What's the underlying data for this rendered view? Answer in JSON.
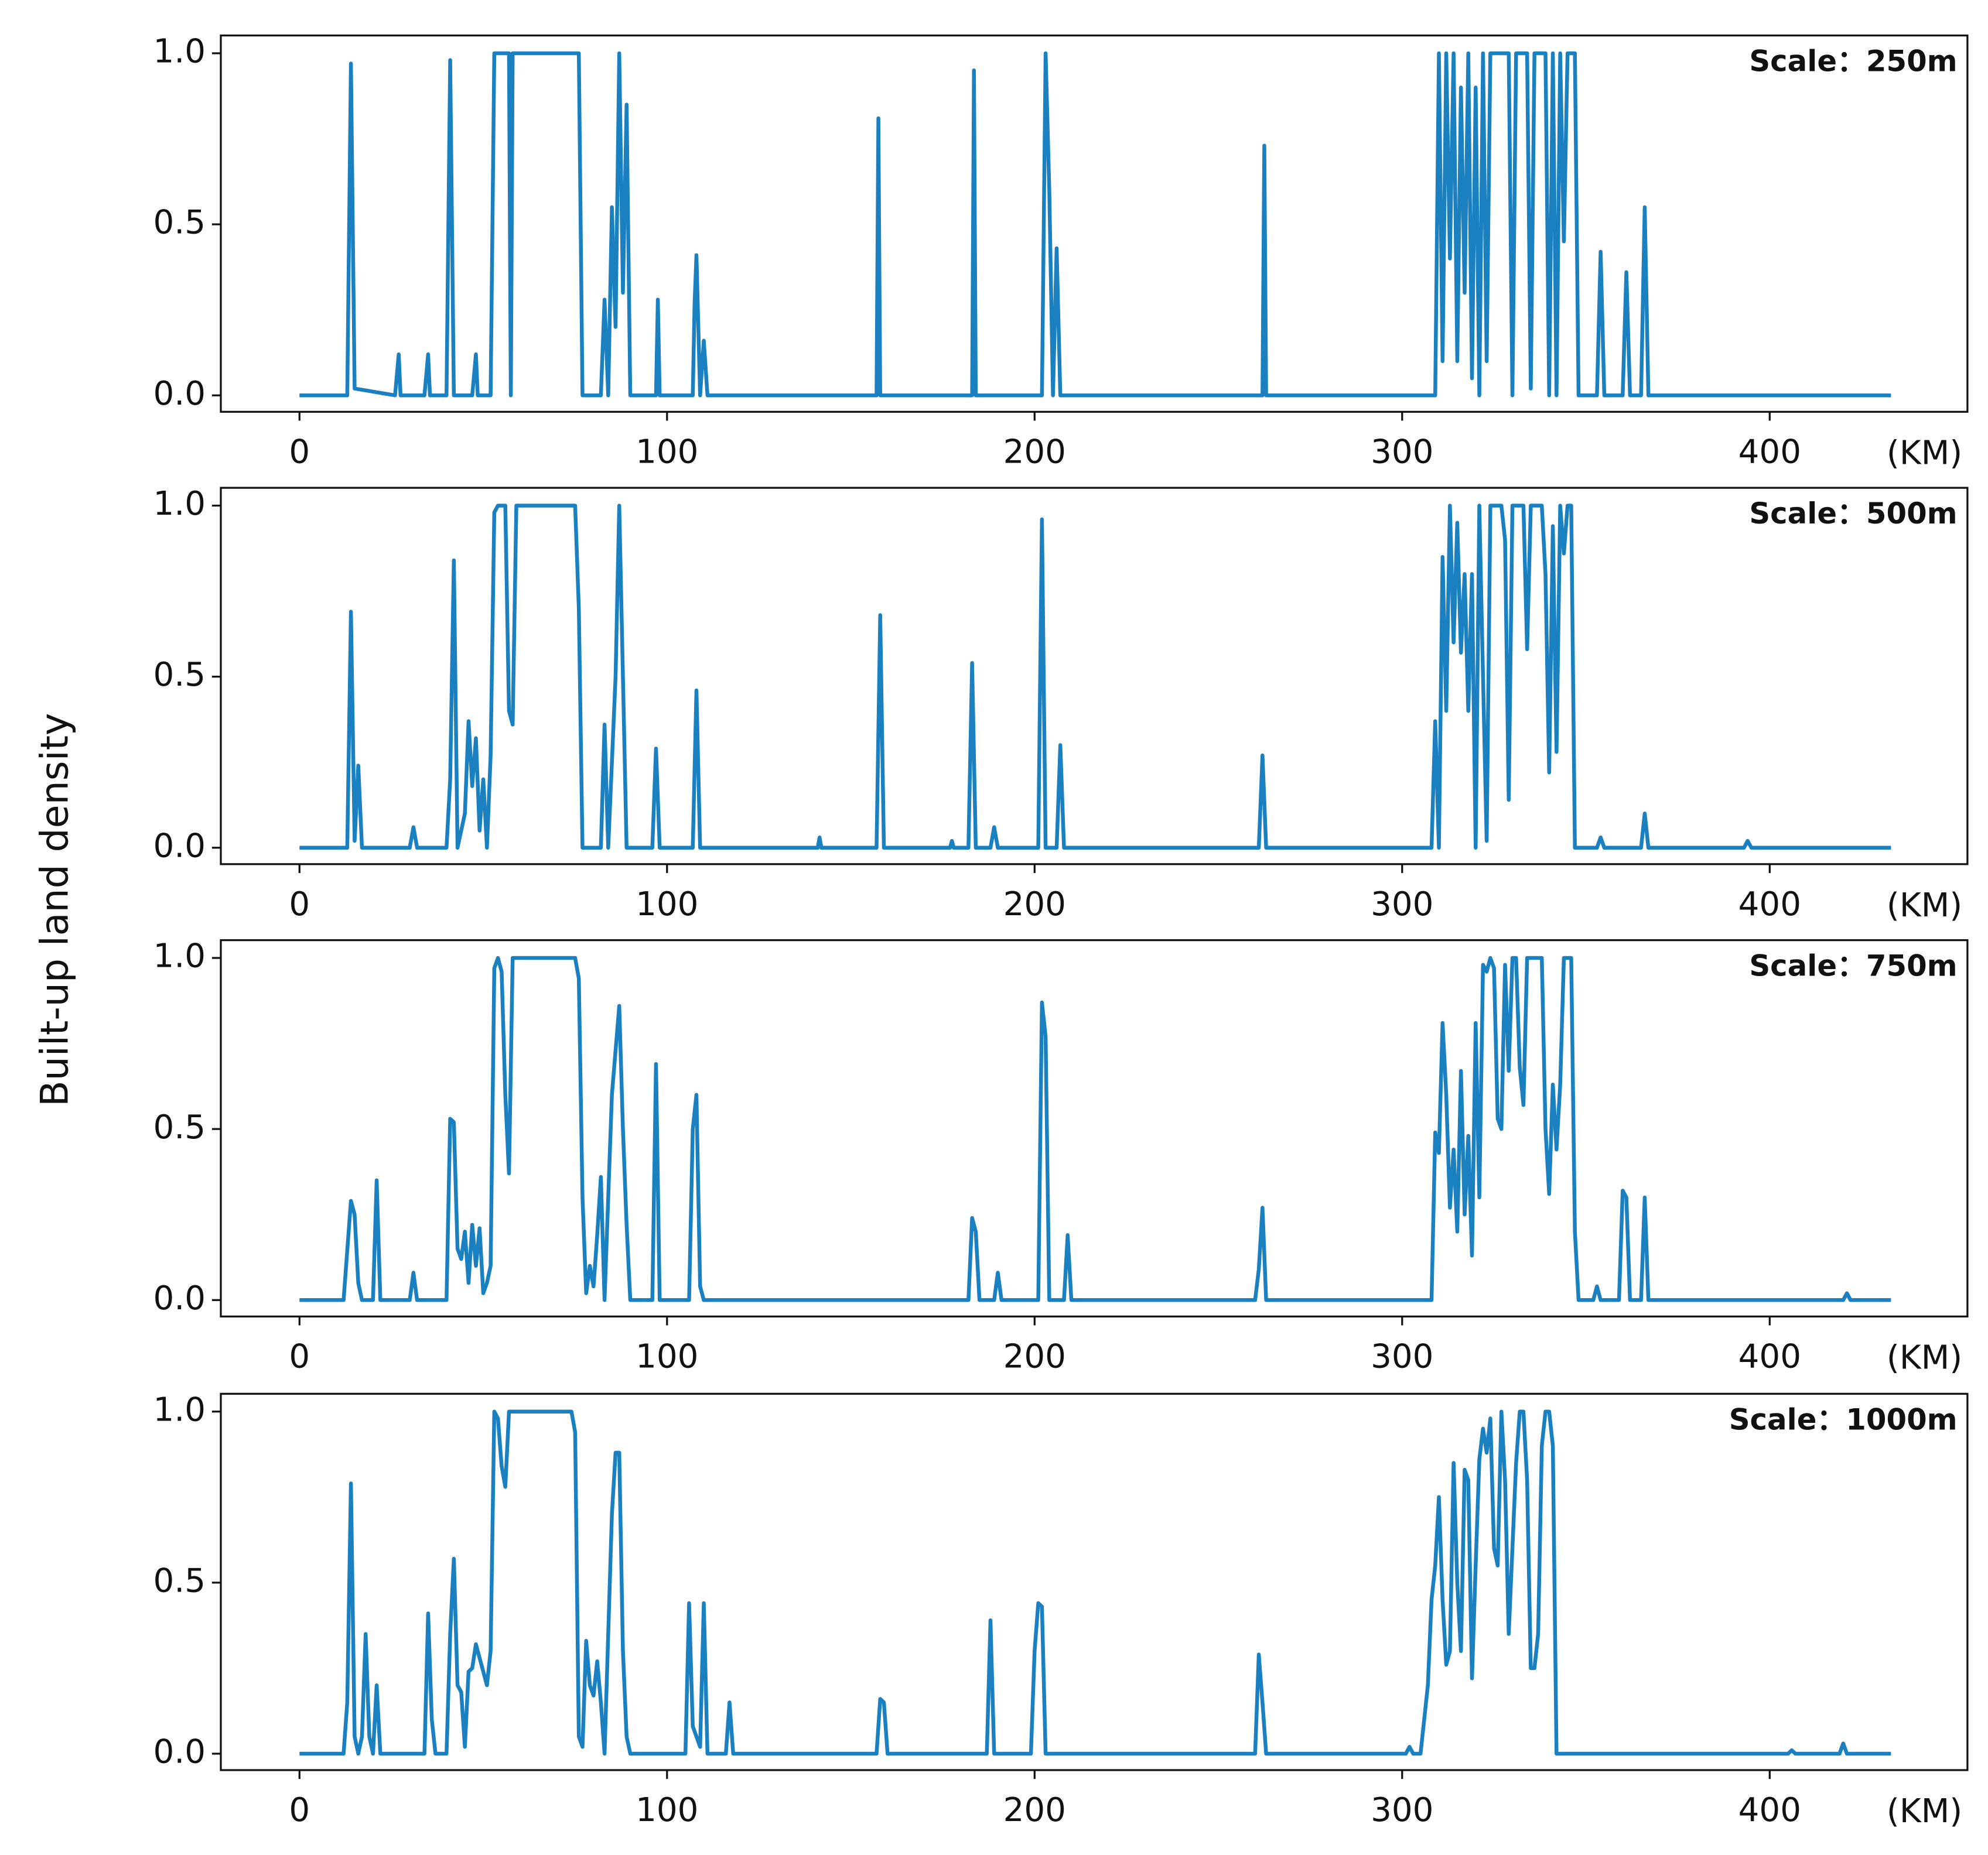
{
  "figure": {
    "ylabel": "Built-up land density"
  },
  "chart_data": [
    {
      "type": "line",
      "annotation": "Scale：250m",
      "xlabel": "(KM)",
      "color": "#1a80c0",
      "xlim": [
        -21.4,
        453.8
      ],
      "ylim": [
        -0.048,
        1.052
      ],
      "xticks": [
        0,
        100,
        200,
        300,
        400
      ],
      "yticks": [
        {
          "value": 0,
          "label": "0.0"
        },
        0.5,
        {
          "value": 1,
          "label": "1.0"
        }
      ],
      "x": [
        0,
        13,
        14,
        15,
        26,
        27,
        27.5,
        34,
        35,
        35.5,
        40,
        41,
        42,
        47,
        48,
        48.5,
        52,
        53,
        57,
        57.5,
        58,
        76,
        77,
        82,
        83,
        84,
        85,
        86,
        87,
        88,
        89,
        90,
        97,
        97.5,
        98,
        107,
        107.5,
        108,
        109,
        110,
        111,
        157,
        157.5,
        158,
        183,
        183.5,
        184,
        202,
        203,
        204,
        205,
        206,
        207,
        262,
        262.5,
        263,
        309,
        310,
        311,
        312,
        313,
        314,
        315,
        316,
        317,
        318,
        319,
        320,
        321,
        322,
        323,
        324,
        329,
        330,
        331,
        334,
        335,
        336,
        339,
        340,
        341,
        342,
        343,
        344,
        345,
        347,
        348,
        353,
        354,
        355,
        360,
        361,
        362,
        365,
        366,
        367,
        433
      ],
      "values": [
        0,
        0,
        0.97,
        0.02,
        0,
        0.12,
        0,
        0,
        0.12,
        0,
        0,
        0.98,
        0,
        0,
        0.12,
        0,
        0,
        1,
        1,
        0,
        1,
        1,
        0,
        0,
        0.28,
        0,
        0.55,
        0.2,
        1,
        0.3,
        0.85,
        0,
        0,
        0.28,
        0,
        0,
        0.27,
        0.41,
        0,
        0.16,
        0,
        0,
        0.81,
        0,
        0,
        0.95,
        0,
        0,
        1,
        0.6,
        0,
        0.43,
        0,
        0,
        0.73,
        0,
        0,
        1,
        0.1,
        1,
        0.4,
        1,
        0.1,
        0.9,
        0.3,
        1,
        0.05,
        0.9,
        0,
        1,
        0.1,
        1,
        1,
        0,
        1,
        1,
        0.02,
        1,
        1,
        0,
        1,
        0,
        1,
        0.45,
        1,
        1,
        0,
        0,
        0.42,
        0,
        0,
        0.36,
        0,
        0,
        0.55,
        0,
        0
      ]
    },
    {
      "type": "line",
      "annotation": "Scale：500m",
      "xlabel": "(KM)",
      "color": "#1a80c0",
      "xlim": [
        -21.4,
        453.8
      ],
      "ylim": [
        -0.048,
        1.052
      ],
      "xticks": [
        0,
        100,
        200,
        300,
        400
      ],
      "yticks": [
        {
          "value": 0,
          "label": "0.0"
        },
        0.5,
        {
          "value": 1,
          "label": "1.0"
        }
      ],
      "x": [
        0,
        13,
        14,
        15,
        16,
        17,
        30,
        31,
        32,
        40,
        41,
        42,
        43,
        45,
        46,
        47,
        48,
        49,
        50,
        51,
        52,
        53,
        54,
        56,
        57,
        58,
        59,
        75,
        76,
        77,
        82,
        83,
        84,
        86,
        87,
        88,
        89,
        96,
        97,
        98,
        107,
        108,
        109,
        141,
        141.5,
        142,
        157,
        158,
        159,
        177,
        177.5,
        178,
        182,
        183,
        184,
        188,
        189,
        190,
        201,
        202,
        203,
        206,
        207,
        208,
        261,
        262,
        263,
        308,
        309,
        310,
        311,
        312,
        313,
        314,
        315,
        316,
        317,
        318,
        319,
        320,
        321,
        322,
        323,
        324,
        327,
        328,
        329,
        330,
        333,
        334,
        335,
        338,
        339,
        340,
        341,
        342,
        343,
        344,
        345,
        346,
        347,
        353,
        354,
        355,
        365,
        366,
        367,
        393,
        394,
        395,
        433
      ],
      "values": [
        0,
        0,
        0.69,
        0.02,
        0.24,
        0,
        0,
        0.06,
        0,
        0,
        0.2,
        0.84,
        0,
        0.1,
        0.37,
        0.18,
        0.32,
        0.05,
        0.2,
        0,
        0.27,
        0.98,
        1,
        1,
        0.4,
        0.36,
        1,
        1,
        0.7,
        0,
        0,
        0.36,
        0,
        0.5,
        1,
        0.5,
        0,
        0,
        0.29,
        0,
        0,
        0.46,
        0,
        0,
        0.03,
        0,
        0,
        0.68,
        0,
        0,
        0.02,
        0,
        0,
        0.54,
        0,
        0,
        0.06,
        0,
        0,
        0.96,
        0,
        0,
        0.3,
        0,
        0,
        0.27,
        0,
        0,
        0.37,
        0,
        0.85,
        0.4,
        1,
        0.6,
        0.95,
        0.57,
        0.8,
        0.4,
        0.8,
        0,
        1,
        0.5,
        0.02,
        1,
        1,
        0.9,
        0.14,
        1,
        1,
        0.58,
        1,
        1,
        0.8,
        0.22,
        0.94,
        0.28,
        1,
        0.86,
        1,
        1,
        0,
        0,
        0.03,
        0,
        0,
        0.1,
        0,
        0,
        0.02,
        0,
        0
      ]
    },
    {
      "type": "line",
      "annotation": "Scale：750m",
      "xlabel": "(KM)",
      "color": "#1a80c0",
      "xlim": [
        -21.4,
        453.8
      ],
      "ylim": [
        -0.048,
        1.052
      ],
      "xticks": [
        0,
        100,
        200,
        300,
        400
      ],
      "yticks": [
        {
          "value": 0,
          "label": "0.0"
        },
        0.5,
        {
          "value": 1,
          "label": "1.0"
        }
      ],
      "x": [
        0,
        12,
        14,
        15,
        16,
        17,
        20,
        21,
        22,
        30,
        31,
        32,
        40,
        41,
        42,
        43,
        44,
        45,
        46,
        47,
        48,
        49,
        50,
        51,
        52,
        53,
        54,
        55,
        56,
        57,
        58,
        75,
        76,
        77,
        78,
        79,
        80,
        81,
        82,
        83,
        85,
        87,
        88,
        89,
        90,
        96,
        97,
        98,
        106,
        107,
        108,
        109,
        110,
        182,
        183,
        184,
        185,
        189,
        190,
        191,
        201,
        202,
        203,
        204,
        208,
        209,
        210,
        260,
        261,
        262,
        263,
        308,
        309,
        310,
        311,
        312,
        313,
        314,
        315,
        316,
        317,
        318,
        319,
        320,
        321,
        322,
        323,
        324,
        325,
        326,
        327,
        328,
        329,
        330,
        331,
        332,
        333,
        334,
        338,
        339,
        340,
        341,
        342,
        343,
        344,
        346,
        347,
        348,
        352,
        353,
        354,
        359,
        360,
        361,
        362,
        365,
        366,
        367,
        420,
        421,
        422,
        433
      ],
      "values": [
        0,
        0,
        0.29,
        0.25,
        0.05,
        0,
        0,
        0.35,
        0,
        0,
        0.08,
        0,
        0,
        0.53,
        0.52,
        0.15,
        0.12,
        0.2,
        0.05,
        0.22,
        0.1,
        0.21,
        0.02,
        0.05,
        0.1,
        0.97,
        1,
        0.96,
        0.6,
        0.37,
        1,
        1,
        0.94,
        0.3,
        0.02,
        0.1,
        0.04,
        0.19,
        0.36,
        0,
        0.6,
        0.86,
        0.5,
        0.22,
        0,
        0,
        0.69,
        0,
        0,
        0.5,
        0.6,
        0.04,
        0,
        0,
        0.24,
        0.2,
        0,
        0,
        0.08,
        0,
        0,
        0.87,
        0.77,
        0,
        0,
        0.19,
        0,
        0,
        0.09,
        0.27,
        0,
        0,
        0.49,
        0.43,
        0.81,
        0.6,
        0.27,
        0.44,
        0.2,
        0.67,
        0.25,
        0.48,
        0.13,
        0.81,
        0.3,
        0.98,
        0.96,
        1,
        0.97,
        0.53,
        0.5,
        0.98,
        0.67,
        1,
        1,
        0.68,
        0.57,
        1,
        1,
        0.5,
        0.31,
        0.63,
        0.44,
        0.63,
        1,
        1,
        0.2,
        0,
        0,
        0.04,
        0,
        0,
        0.32,
        0.3,
        0,
        0,
        0.3,
        0,
        0,
        0.02,
        0,
        0
      ]
    },
    {
      "type": "line",
      "annotation": "Scale：1000m",
      "xlabel": "(KM)",
      "color": "#1a80c0",
      "xlim": [
        -21.4,
        453.8
      ],
      "ylim": [
        -0.048,
        1.052
      ],
      "xticks": [
        0,
        100,
        200,
        300,
        400
      ],
      "yticks": [
        {
          "value": 0,
          "label": "0.0"
        },
        0.5,
        {
          "value": 1,
          "label": "1.0"
        }
      ],
      "x": [
        0,
        12,
        13,
        14,
        15,
        16,
        17,
        18,
        19,
        20,
        21,
        22,
        34,
        35,
        36,
        37,
        40,
        41,
        42,
        43,
        44,
        45,
        46,
        47,
        48,
        49,
        51,
        52,
        53,
        54,
        55,
        56,
        57,
        74,
        75,
        76,
        77,
        78,
        79,
        80,
        81,
        82,
        83,
        85,
        86,
        87,
        88,
        89,
        90,
        105,
        106,
        107,
        108,
        109,
        110,
        111,
        116,
        117,
        118,
        157,
        158,
        159,
        160,
        187,
        188,
        189,
        199,
        200,
        201,
        202,
        203,
        260,
        261,
        262,
        263,
        301,
        302,
        303,
        305,
        307,
        308,
        309,
        310,
        311,
        312,
        313,
        314,
        315,
        316,
        317,
        318,
        319,
        320,
        321,
        322,
        323,
        324,
        325,
        326,
        327,
        328,
        329,
        330,
        331,
        332,
        333,
        334,
        335,
        336,
        337,
        338,
        339,
        340,
        341,
        342,
        405,
        406,
        407,
        419,
        420,
        421,
        433
      ],
      "values": [
        0,
        0,
        0.15,
        0.79,
        0.05,
        0,
        0.05,
        0.35,
        0.05,
        0,
        0.2,
        0,
        0,
        0.41,
        0.1,
        0,
        0,
        0.35,
        0.57,
        0.2,
        0.18,
        0.02,
        0.24,
        0.25,
        0.32,
        0.28,
        0.2,
        0.3,
        1,
        0.98,
        0.84,
        0.78,
        1,
        1,
        0.94,
        0.05,
        0.02,
        0.33,
        0.2,
        0.17,
        0.27,
        0.15,
        0,
        0.7,
        0.88,
        0.88,
        0.3,
        0.05,
        0,
        0,
        0.44,
        0.08,
        0.05,
        0.02,
        0.44,
        0,
        0,
        0.15,
        0,
        0,
        0.16,
        0.15,
        0,
        0,
        0.39,
        0,
        0,
        0.3,
        0.44,
        0.43,
        0,
        0,
        0.29,
        0.15,
        0,
        0,
        0.02,
        0,
        0,
        0.2,
        0.45,
        0.55,
        0.75,
        0.45,
        0.26,
        0.3,
        0.85,
        0.5,
        0.3,
        0.83,
        0.8,
        0.22,
        0.55,
        0.86,
        0.95,
        0.88,
        0.98,
        0.6,
        0.55,
        1,
        0.8,
        0.35,
        0.6,
        0.85,
        1,
        1,
        0.8,
        0.25,
        0.25,
        0.35,
        0.9,
        1,
        1,
        0.9,
        0,
        0,
        0.01,
        0,
        0,
        0.03,
        0,
        0
      ]
    }
  ]
}
